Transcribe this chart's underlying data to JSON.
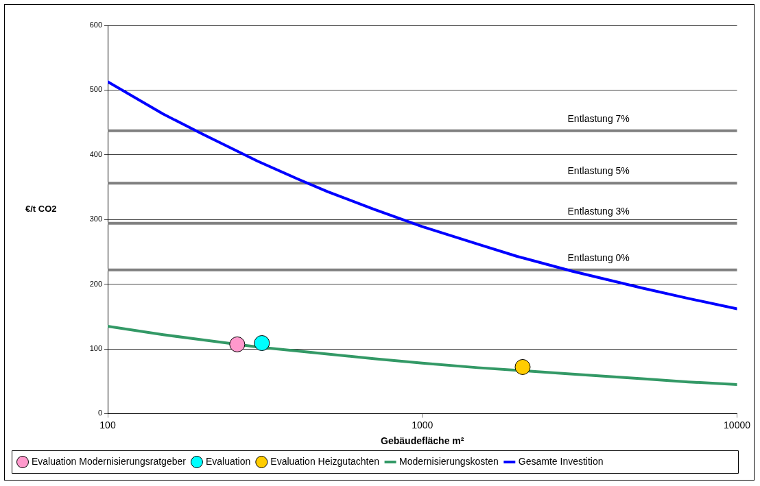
{
  "chart_data": {
    "type": "line",
    "xlabel": "Gebäudefläche m²",
    "ylabel": "€/t CO2",
    "xlim": [
      100,
      10000
    ],
    "xticks": [
      100,
      1000,
      10000
    ],
    "ylim": [
      0,
      600
    ],
    "yticks": [
      0,
      100,
      200,
      300,
      400,
      500,
      600
    ],
    "log": "x",
    "grid": "y",
    "legend": "bottom",
    "series": [
      {
        "name": "Evaluation Modernisierungsratgeber",
        "type": "scatter",
        "marker": "circle",
        "color": "#ff99cc",
        "x": [
          258
        ],
        "values": [
          107
        ]
      },
      {
        "name": "Evaluation",
        "type": "scatter",
        "marker": "circle",
        "color": "#00ffff",
        "x": [
          309
        ],
        "values": [
          109
        ]
      },
      {
        "name": "Evaluation Heizgutachten",
        "type": "scatter",
        "marker": "circle",
        "color": "#ffcc00",
        "x": [
          2083
        ],
        "values": [
          72
        ]
      },
      {
        "name": "Modernisierungskosten",
        "marker": "none",
        "color": "#339966",
        "x": [
          100,
          150,
          200,
          300,
          500,
          700,
          1000,
          1500,
          2000,
          3000,
          5000,
          7000,
          10000
        ],
        "values": [
          135,
          122,
          114,
          103,
          92,
          85,
          78,
          71,
          67,
          61,
          54,
          49,
          45
        ]
      },
      {
        "name": "Gesamte Investition",
        "marker": "none",
        "color": "#0000ff",
        "x": [
          100,
          150,
          200,
          300,
          400,
          500,
          700,
          1000,
          1500,
          2000,
          3000,
          5000,
          7000,
          10000
        ],
        "values": [
          513,
          463,
          432,
          390,
          363,
          343,
          316,
          289,
          262,
          243,
          220,
          194,
          178,
          162
        ]
      }
    ],
    "ref_lines": [
      {
        "axis": "y",
        "value": 437,
        "label": "Entlastung 7%",
        "color": "#808080"
      },
      {
        "axis": "y",
        "value": 356,
        "label": "Entlastung 5%",
        "color": "#808080"
      },
      {
        "axis": "y",
        "value": 294,
        "label": "Entlastung 3%",
        "color": "#808080"
      },
      {
        "axis": "y",
        "value": 222,
        "label": "Entlastung 0%",
        "color": "#808080"
      }
    ]
  }
}
